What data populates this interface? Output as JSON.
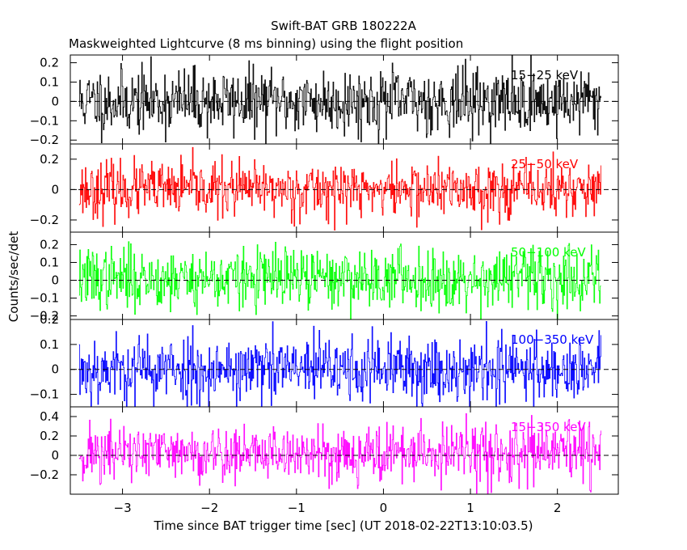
{
  "title": "Swift-BAT GRB 180222A",
  "subtitle": "Maskweighted Lightcurve (8 ms binning) using the flight position",
  "ylabel": "Counts/sec/det",
  "xlabel": "Time since BAT trigger time [sec] (UT 2018-02-22T13:10:03.5)",
  "x_tick_labels": [
    "−3",
    "−2",
    "−1",
    "0",
    "1",
    "2"
  ],
  "chart_data": [
    {
      "type": "line",
      "series": [
        {
          "name": "15−25 keV",
          "color": "#000000",
          "generator": {
            "seed": 11,
            "mean": 0.0,
            "amp": 0.085
          }
        }
      ],
      "x_range": [
        -3.5,
        2.5
      ],
      "xlim": [
        -3.6,
        2.7
      ],
      "ylim": [
        -0.22,
        0.24
      ],
      "y_ticks": [
        -0.2,
        -0.1,
        0,
        0.1,
        0.2
      ],
      "y_tick_labels": [
        "−0.2",
        "−0.1",
        "0",
        "0.1",
        "0.2"
      ],
      "reference_line": 0
    },
    {
      "type": "line",
      "series": [
        {
          "name": "25−50 keV",
          "color": "#ff0000",
          "generator": {
            "seed": 23,
            "mean": 0.0,
            "amp": 0.09
          }
        }
      ],
      "x_range": [
        -3.5,
        2.5
      ],
      "xlim": [
        -3.6,
        2.7
      ],
      "ylim": [
        -0.28,
        0.3
      ],
      "y_ticks": [
        -0.2,
        0,
        0.2
      ],
      "y_tick_labels": [
        "−0.2",
        "0",
        "0.2"
      ],
      "reference_line": 0
    },
    {
      "type": "line",
      "series": [
        {
          "name": "50−100 keV",
          "color": "#00ff00",
          "generator": {
            "seed": 37,
            "mean": 0.01,
            "amp": 0.085
          }
        }
      ],
      "x_range": [
        -3.5,
        2.5
      ],
      "xlim": [
        -3.6,
        2.7
      ],
      "ylim": [
        -0.22,
        0.27
      ],
      "y_ticks": [
        -0.2,
        -0.1,
        0,
        0.1,
        0.2
      ],
      "y_tick_labels": [
        "−0.2",
        "−0.1",
        "0",
        "0.1",
        "0.2"
      ],
      "reference_line": 0
    },
    {
      "type": "line",
      "series": [
        {
          "name": "100−350 keV",
          "color": "#0000ff",
          "generator": {
            "seed": 53,
            "mean": 0.0,
            "amp": 0.07
          }
        }
      ],
      "x_range": [
        -3.5,
        2.5
      ],
      "xlim": [
        -3.6,
        2.7
      ],
      "ylim": [
        -0.15,
        0.2
      ],
      "y_ticks": [
        -0.1,
        0,
        0.1,
        0.2
      ],
      "y_tick_labels": [
        "−0.1",
        "0",
        "0.1",
        "0.2"
      ],
      "reference_line": 0
    },
    {
      "type": "line",
      "series": [
        {
          "name": "15−350 keV",
          "color": "#ff00ff",
          "generator": {
            "seed": 71,
            "mean": 0.02,
            "amp": 0.15
          }
        }
      ],
      "x_range": [
        -3.5,
        2.5
      ],
      "xlim": [
        -3.6,
        2.7
      ],
      "ylim": [
        -0.4,
        0.5
      ],
      "y_ticks": [
        -0.2,
        0,
        0.2,
        0.4
      ],
      "y_tick_labels": [
        "−0.2",
        "0",
        "0.2",
        "0.4"
      ],
      "reference_line": 0
    }
  ],
  "x_ticks": [
    -3,
    -2,
    -1,
    0,
    1,
    2
  ]
}
